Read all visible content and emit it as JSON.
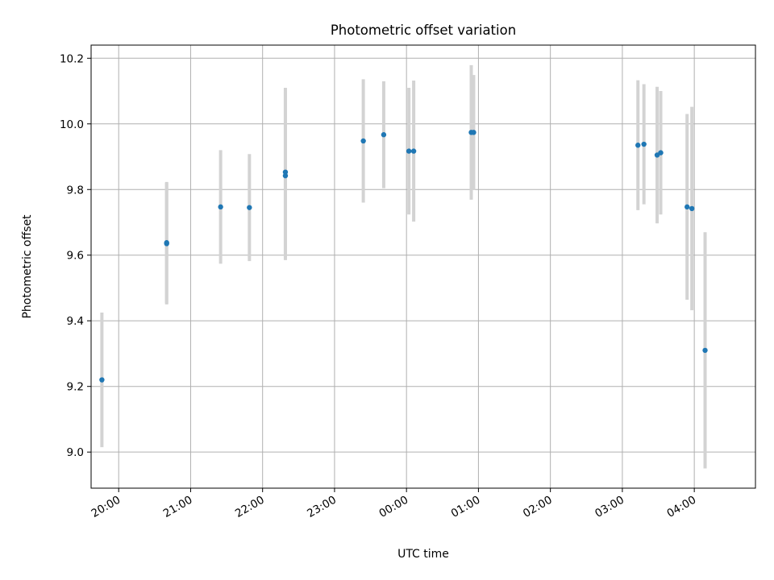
{
  "chart_data": {
    "type": "scatter",
    "title": "Photometric offset variation",
    "xlabel": "UTC time",
    "ylabel": "Photometric offset",
    "xlim": [
      "19:37",
      "04:51"
    ],
    "ylim": [
      8.89,
      10.24
    ],
    "grid": true,
    "legend": "none",
    "x_tick_labels": [
      "20:00",
      "21:00",
      "22:00",
      "23:00",
      "00:00",
      "01:00",
      "02:00",
      "03:00",
      "04:00"
    ],
    "y_tick_labels": [
      "9.0",
      "9.2",
      "9.4",
      "9.6",
      "9.8",
      "10.0",
      "10.2"
    ],
    "y_ticks": [
      9.0,
      9.2,
      9.4,
      9.6,
      9.8,
      10.0,
      10.2
    ],
    "colors": {
      "point": "#1f77b4",
      "errorbar": "#d3d3d3",
      "grid": "#b0b0b0"
    },
    "series": [
      {
        "points": [
          {
            "x": "19:46",
            "y": 9.22,
            "err": 0.205
          },
          {
            "x": "20:40",
            "y": 9.635,
            "err": 0.185
          },
          {
            "x": "20:40",
            "y": 9.638,
            "err": 0.185
          },
          {
            "x": "21:25",
            "y": 9.747,
            "err": 0.173
          },
          {
            "x": "21:49",
            "y": 9.745,
            "err": 0.163
          },
          {
            "x": "22:19",
            "y": 9.842,
            "err": 0.257
          },
          {
            "x": "22:19",
            "y": 9.853,
            "err": 0.257
          },
          {
            "x": "23:24",
            "y": 9.948,
            "err": 0.188
          },
          {
            "x": "23:41",
            "y": 9.967,
            "err": 0.163
          },
          {
            "x": "00:02",
            "y": 9.917,
            "err": 0.193
          },
          {
            "x": "00:06",
            "y": 9.917,
            "err": 0.215
          },
          {
            "x": "00:54",
            "y": 9.974,
            "err": 0.205
          },
          {
            "x": "00:56",
            "y": 9.974,
            "err": 0.175
          },
          {
            "x": "03:13",
            "y": 9.935,
            "err": 0.198
          },
          {
            "x": "03:18",
            "y": 9.938,
            "err": 0.183
          },
          {
            "x": "03:29",
            "y": 9.905,
            "err": 0.208
          },
          {
            "x": "03:32",
            "y": 9.912,
            "err": 0.188
          },
          {
            "x": "03:54",
            "y": 9.747,
            "err": 0.283
          },
          {
            "x": "03:58",
            "y": 9.742,
            "err": 0.31
          },
          {
            "x": "04:09",
            "y": 9.31,
            "err": 0.36
          }
        ]
      }
    ]
  }
}
